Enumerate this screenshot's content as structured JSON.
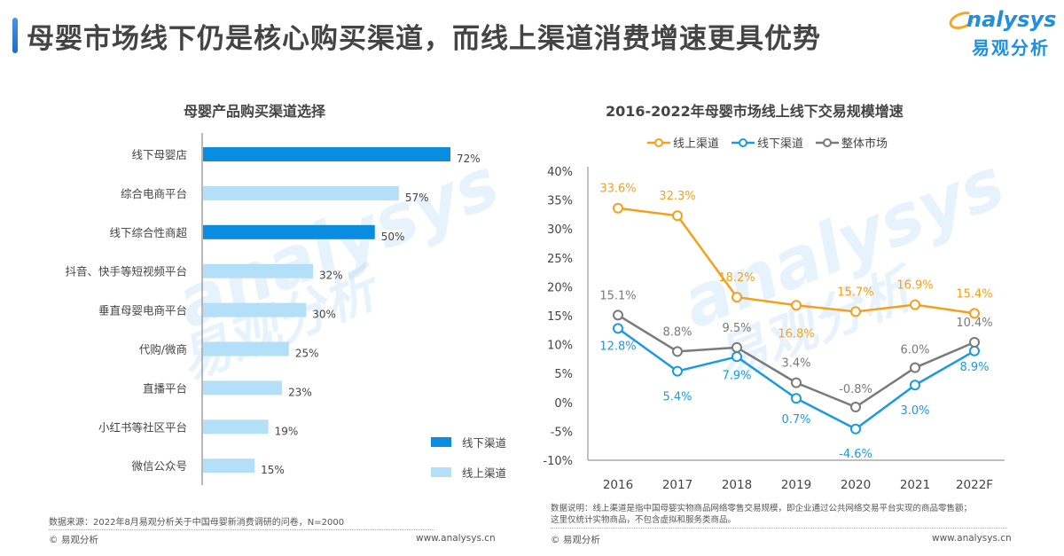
{
  "header": {
    "title": "母婴市场线下仍是核心购买渠道，而线上渠道消费增速更具优势",
    "logo_en": "nalysys",
    "logo_cn": "易观分析",
    "accent_color": "#1a6fd1"
  },
  "watermark": {
    "en": "analysys",
    "cn": "易观分析"
  },
  "left_panel": {
    "footnote": "数据来源：2022年8月易观分析关于中国母婴新消费调研的问卷，N=2000",
    "copyright": "© 易观分析",
    "website": "www.analysys.cn"
  },
  "right_panel": {
    "footnote_line1": "数据说明：线上渠道是指中国母婴实物商品网络零售交易规模，即企业通过公共网络交易平台实现的商品零售额；",
    "footnote_line2": "这里仅统计实物商品，不包含虚拟和服务类商品。",
    "copyright": "© 易观分析",
    "website": "www.analysys.cn"
  },
  "chart_data": [
    {
      "type": "bar",
      "orientation": "horizontal",
      "title": "母婴产品购买渠道选择",
      "categories": [
        "线下母婴店",
        "综合电商平台",
        "线下综合性商超",
        "抖音、快手等短视频平台",
        "垂直母婴电商平台",
        "代购/微商",
        "直播平台",
        "小红书等社区平台",
        "微信公众号"
      ],
      "values": [
        72,
        57,
        50,
        32,
        30,
        25,
        23,
        19,
        15
      ],
      "value_labels": [
        "72%",
        "57%",
        "50%",
        "32%",
        "30%",
        "25%",
        "23%",
        "19%",
        "15%"
      ],
      "groups": [
        "offline",
        "online",
        "offline",
        "online",
        "online",
        "online",
        "online",
        "online",
        "online"
      ],
      "unit": "%",
      "xlim": [
        0,
        100
      ],
      "legend": [
        {
          "key": "offline",
          "label": "线下渠道",
          "color": "#0a8ce0"
        },
        {
          "key": "online",
          "label": "线上渠道",
          "color": "#b3dff8"
        }
      ],
      "legend_position": "bottom-right",
      "grid": false
    },
    {
      "type": "line",
      "title": "2016-2022年母婴市场线上线下交易规模增速",
      "x": [
        "2016",
        "2017",
        "2018",
        "2019",
        "2020",
        "2021",
        "2022F"
      ],
      "series": [
        {
          "name": "线上渠道",
          "color": "#f5a01a",
          "values": [
            33.6,
            32.3,
            18.2,
            16.8,
            15.7,
            16.9,
            15.4
          ],
          "labels": [
            "33.6%",
            "32.3%",
            "18.2%",
            "16.8%",
            "15.7%",
            "16.9%",
            "15.4%"
          ]
        },
        {
          "name": "线下渠道",
          "color": "#1a9ae0",
          "values": [
            12.8,
            5.4,
            7.9,
            0.7,
            -4.6,
            3.0,
            8.9
          ],
          "labels": [
            "12.8%",
            "5.4%",
            "7.9%",
            "0.7%",
            "-4.6%",
            "3.0%",
            "8.9%"
          ]
        },
        {
          "name": "整体市场",
          "color": "#7a7a7a",
          "values": [
            15.1,
            8.8,
            9.5,
            3.4,
            -0.8,
            6.0,
            10.4
          ],
          "labels": [
            "15.1%",
            "8.8%",
            "9.5%",
            "3.4%",
            "-0.8%",
            "6.0%",
            "10.4%"
          ]
        }
      ],
      "yticks": [
        "40%",
        "35%",
        "30%",
        "25%",
        "20%",
        "15%",
        "10%",
        "5%",
        "0%",
        "-5%",
        "-10%"
      ],
      "ytick_values": [
        40,
        35,
        30,
        25,
        20,
        15,
        10,
        5,
        0,
        -5,
        -10
      ],
      "ylim": [
        -10,
        40
      ],
      "unit": "%",
      "legend_position": "top",
      "grid": false
    }
  ]
}
